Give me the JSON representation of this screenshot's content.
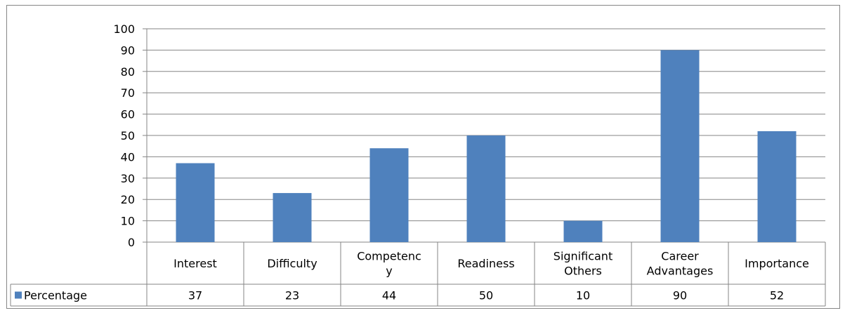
{
  "chart_data": {
    "type": "bar",
    "categories": [
      [
        "Interest"
      ],
      [
        "Difficulty"
      ],
      [
        "Competenc",
        "y"
      ],
      [
        "Readiness"
      ],
      [
        "Significant",
        "Others"
      ],
      [
        "Career",
        "Advantages"
      ],
      [
        "Importance"
      ]
    ],
    "series": [
      {
        "name": "Percentage",
        "color": "#4f81bd",
        "values": [
          37,
          23,
          44,
          50,
          10,
          90,
          52
        ]
      }
    ],
    "ylim": [
      0,
      100
    ],
    "yticks": [
      0,
      10,
      20,
      30,
      40,
      50,
      60,
      70,
      80,
      90,
      100
    ],
    "grid": true,
    "legend": "data-table-left"
  }
}
